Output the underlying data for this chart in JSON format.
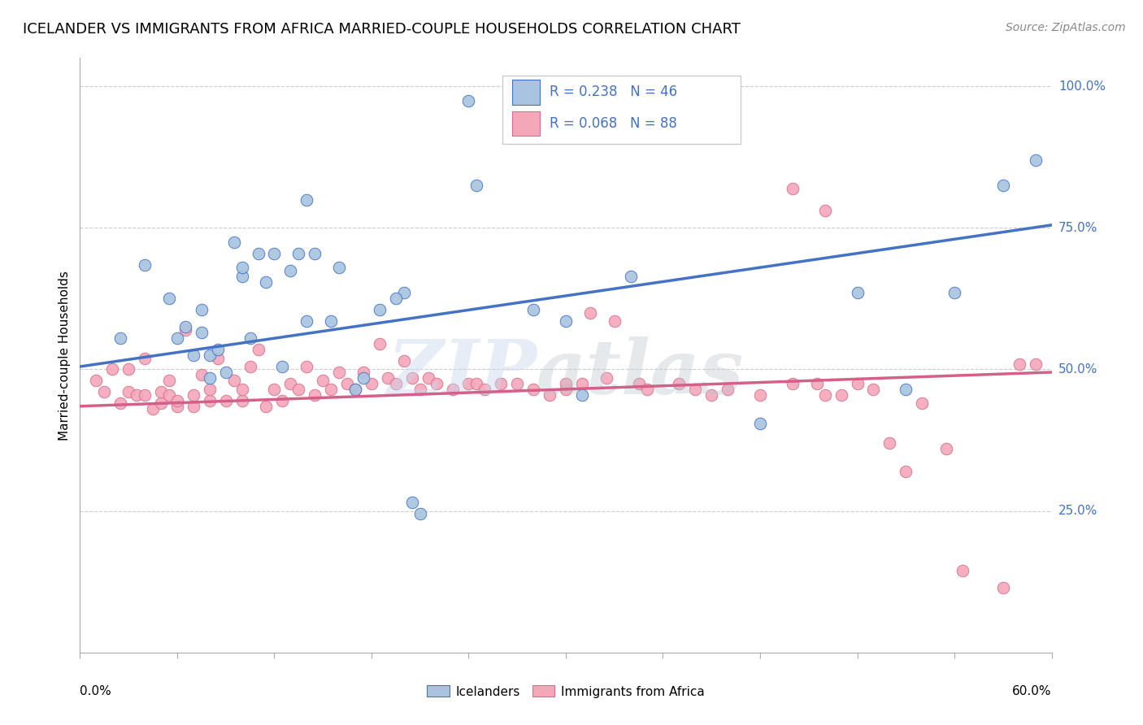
{
  "title": "ICELANDER VS IMMIGRANTS FROM AFRICA MARRIED-COUPLE HOUSEHOLDS CORRELATION CHART",
  "source": "Source: ZipAtlas.com",
  "ylabel": "Married-couple Households",
  "blue_fill": "#a8c4e0",
  "blue_edge": "#4472c4",
  "pink_fill": "#f4a7b9",
  "pink_edge": "#d4708a",
  "line_blue": "#4472c4",
  "line_pink": "#d4608a",
  "icelanders_x": [
    0.025,
    0.04,
    0.055,
    0.06,
    0.065,
    0.07,
    0.075,
    0.075,
    0.08,
    0.08,
    0.085,
    0.09,
    0.095,
    0.1,
    0.1,
    0.105,
    0.11,
    0.115,
    0.12,
    0.125,
    0.13,
    0.135,
    0.14,
    0.145,
    0.155,
    0.16,
    0.17,
    0.175,
    0.185,
    0.2,
    0.205,
    0.21,
    0.24,
    0.245,
    0.28,
    0.3,
    0.31,
    0.34,
    0.42,
    0.48,
    0.51,
    0.54,
    0.57,
    0.59,
    0.14,
    0.195
  ],
  "icelanders_y": [
    0.555,
    0.685,
    0.625,
    0.555,
    0.575,
    0.525,
    0.565,
    0.605,
    0.485,
    0.525,
    0.535,
    0.495,
    0.725,
    0.665,
    0.68,
    0.555,
    0.705,
    0.655,
    0.705,
    0.505,
    0.675,
    0.705,
    0.585,
    0.705,
    0.585,
    0.68,
    0.465,
    0.485,
    0.605,
    0.635,
    0.265,
    0.245,
    0.975,
    0.825,
    0.605,
    0.585,
    0.455,
    0.665,
    0.405,
    0.635,
    0.465,
    0.635,
    0.825,
    0.87,
    0.8,
    0.625
  ],
  "africa_x": [
    0.01,
    0.015,
    0.02,
    0.025,
    0.03,
    0.03,
    0.035,
    0.04,
    0.04,
    0.045,
    0.05,
    0.05,
    0.055,
    0.055,
    0.06,
    0.06,
    0.065,
    0.07,
    0.07,
    0.075,
    0.08,
    0.08,
    0.085,
    0.09,
    0.095,
    0.1,
    0.1,
    0.105,
    0.11,
    0.115,
    0.12,
    0.125,
    0.13,
    0.135,
    0.14,
    0.145,
    0.15,
    0.155,
    0.16,
    0.165,
    0.17,
    0.175,
    0.18,
    0.185,
    0.19,
    0.195,
    0.2,
    0.205,
    0.21,
    0.215,
    0.22,
    0.23,
    0.24,
    0.245,
    0.25,
    0.26,
    0.27,
    0.28,
    0.29,
    0.3,
    0.3,
    0.31,
    0.315,
    0.325,
    0.33,
    0.345,
    0.35,
    0.37,
    0.38,
    0.39,
    0.4,
    0.42,
    0.44,
    0.46,
    0.455,
    0.47,
    0.48,
    0.49,
    0.5,
    0.51,
    0.52,
    0.535,
    0.545,
    0.57,
    0.58,
    0.59,
    0.44,
    0.46
  ],
  "africa_y": [
    0.48,
    0.46,
    0.5,
    0.44,
    0.46,
    0.5,
    0.455,
    0.455,
    0.52,
    0.43,
    0.44,
    0.46,
    0.455,
    0.48,
    0.435,
    0.445,
    0.57,
    0.435,
    0.455,
    0.49,
    0.445,
    0.465,
    0.52,
    0.445,
    0.48,
    0.445,
    0.465,
    0.505,
    0.535,
    0.435,
    0.465,
    0.445,
    0.475,
    0.465,
    0.505,
    0.455,
    0.48,
    0.465,
    0.495,
    0.475,
    0.465,
    0.495,
    0.475,
    0.545,
    0.485,
    0.475,
    0.515,
    0.485,
    0.465,
    0.485,
    0.475,
    0.465,
    0.475,
    0.475,
    0.465,
    0.475,
    0.475,
    0.465,
    0.455,
    0.465,
    0.475,
    0.475,
    0.6,
    0.485,
    0.585,
    0.475,
    0.465,
    0.475,
    0.465,
    0.455,
    0.465,
    0.455,
    0.475,
    0.455,
    0.475,
    0.455,
    0.475,
    0.465,
    0.37,
    0.32,
    0.44,
    0.36,
    0.145,
    0.115,
    0.51,
    0.51,
    0.82,
    0.78
  ],
  "blue_line_x": [
    0.0,
    0.6
  ],
  "blue_line_y": [
    0.505,
    0.755
  ],
  "pink_line_x": [
    0.0,
    0.6
  ],
  "pink_line_y": [
    0.435,
    0.495
  ],
  "ytick_vals": [
    0.25,
    0.5,
    0.75,
    1.0
  ],
  "ytick_labels": [
    "25.0%",
    "50.0%",
    "75.0%",
    "100.0%"
  ],
  "xlim": [
    0.0,
    0.6
  ],
  "ylim": [
    0.0,
    1.05
  ]
}
